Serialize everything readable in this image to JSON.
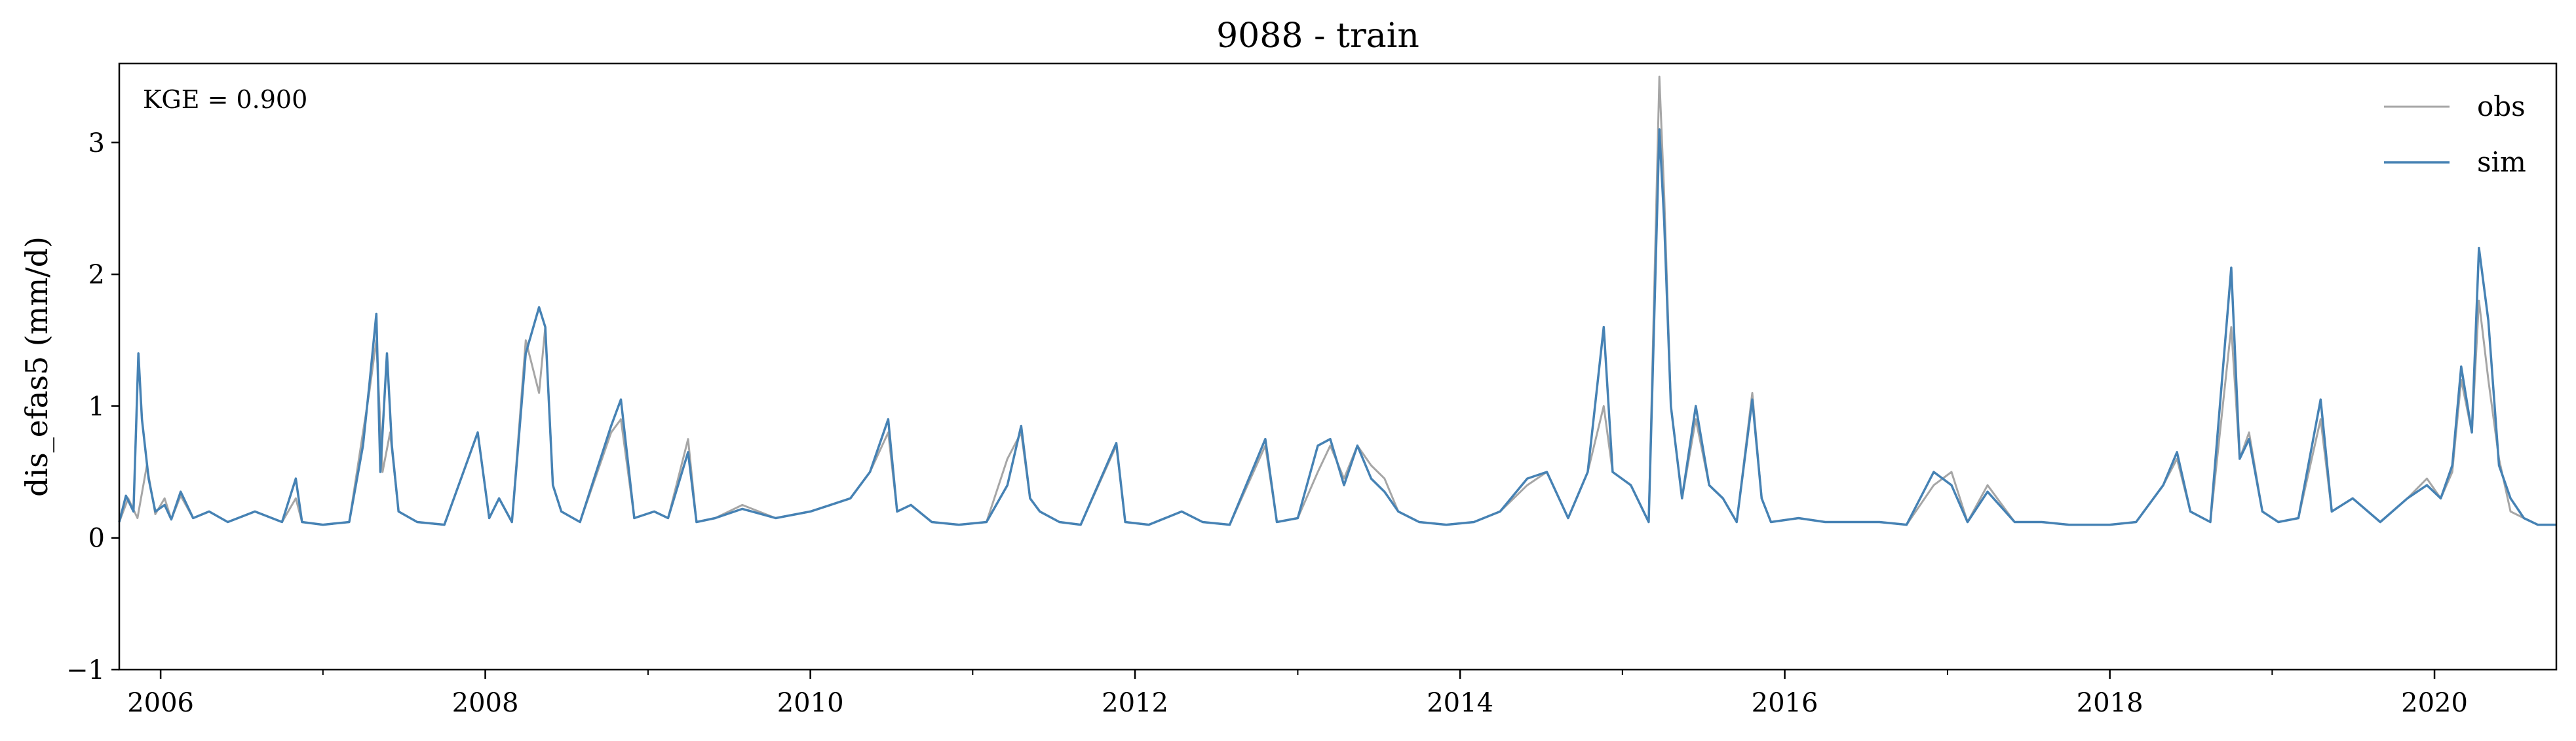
{
  "chart_data": {
    "type": "line",
    "title": "9088 - train",
    "xlabel": "",
    "ylabel": "dis_efas5 (mm/d)",
    "annotation": "KGE = 0.900",
    "xlim": [
      "2005-09-30",
      "2020-10-01"
    ],
    "ylim": [
      -1,
      3.6
    ],
    "grid": false,
    "legend": "top-right",
    "x_major_ticks": [
      "2006",
      "2008",
      "2010",
      "2012",
      "2014",
      "2016",
      "2018",
      "2020"
    ],
    "x_minor_ticks": [
      "2007",
      "2009",
      "2011",
      "2013",
      "2015",
      "2017",
      "2019"
    ],
    "y_ticks": [
      -1,
      0,
      1,
      2,
      3
    ],
    "y_tick_labels": [
      "−1",
      "0",
      "1",
      "2",
      "3"
    ],
    "series": [
      {
        "name": "obs",
        "color": "#a6a6a6",
        "x": [
          "2005-09-30",
          "2005-10-20",
          "2005-11-10",
          "2005-12-01",
          "2005-12-20",
          "2006-01-10",
          "2006-01-25",
          "2006-02-15",
          "2006-03-15",
          "2006-04-20",
          "2006-06-01",
          "2006-08-01",
          "2006-10-01",
          "2006-11-01",
          "2006-11-15",
          "2007-01-01",
          "2007-03-01",
          "2007-04-01",
          "2007-04-15",
          "2007-05-01",
          "2007-05-15",
          "2007-06-01",
          "2007-06-20",
          "2007-08-01",
          "2007-10-01",
          "2007-12-15",
          "2008-01-10",
          "2008-02-01",
          "2008-03-01",
          "2008-04-01",
          "2008-05-01",
          "2008-05-15",
          "2008-06-01",
          "2008-06-20",
          "2008-08-01",
          "2008-10-10",
          "2008-11-01",
          "2008-12-01",
          "2009-01-15",
          "2009-02-15",
          "2009-04-01",
          "2009-04-20",
          "2009-06-01",
          "2009-08-01",
          "2009-10-15",
          "2010-01-01",
          "2010-02-15",
          "2010-04-01",
          "2010-05-15",
          "2010-06-25",
          "2010-07-15",
          "2010-08-15",
          "2010-10-01",
          "2010-12-01",
          "2011-02-01",
          "2011-03-20",
          "2011-04-20",
          "2011-05-10",
          "2011-06-01",
          "2011-07-15",
          "2011-09-01",
          "2011-11-20",
          "2011-12-10",
          "2012-02-01",
          "2012-04-15",
          "2012-06-01",
          "2012-08-01",
          "2012-10-20",
          "2012-11-15",
          "2013-01-01",
          "2013-02-15",
          "2013-03-15",
          "2013-04-15",
          "2013-05-15",
          "2013-06-15",
          "2013-07-15",
          "2013-08-15",
          "2013-10-01",
          "2013-12-01",
          "2014-02-01",
          "2014-04-01",
          "2014-06-01",
          "2014-07-15",
          "2014-09-01",
          "2014-10-15",
          "2014-11-20",
          "2014-12-10",
          "2015-01-20",
          "2015-03-01",
          "2015-03-25",
          "2015-04-05",
          "2015-04-20",
          "2015-05-15",
          "2015-06-15",
          "2015-07-15",
          "2015-08-15",
          "2015-09-15",
          "2015-10-20",
          "2015-11-10",
          "2015-12-01",
          "2016-02-01",
          "2016-04-01",
          "2016-06-01",
          "2016-08-01",
          "2016-10-01",
          "2016-12-01",
          "2017-01-10",
          "2017-02-15",
          "2017-04-01",
          "2017-06-01",
          "2017-08-01",
          "2017-10-01",
          "2018-01-01",
          "2018-03-01",
          "2018-05-01",
          "2018-06-01",
          "2018-07-01",
          "2018-08-15",
          "2018-10-01",
          "2018-10-20",
          "2018-11-10",
          "2018-12-10",
          "2019-01-15",
          "2019-03-01",
          "2019-04-20",
          "2019-05-15",
          "2019-07-01",
          "2019-09-01",
          "2019-11-01",
          "2019-12-15",
          "2020-01-15",
          "2020-02-10",
          "2020-03-01",
          "2020-03-25",
          "2020-04-10",
          "2020-05-01",
          "2020-05-25",
          "2020-06-20",
          "2020-07-20",
          "2020-08-20",
          "2020-10-01"
        ],
        "values": [
          0.12,
          0.3,
          0.15,
          0.55,
          0.18,
          0.3,
          0.14,
          0.32,
          0.15,
          0.2,
          0.12,
          0.2,
          0.12,
          0.3,
          0.12,
          0.1,
          0.12,
          0.8,
          1.1,
          1.5,
          0.5,
          0.8,
          0.2,
          0.12,
          0.1,
          0.8,
          0.15,
          0.3,
          0.12,
          1.5,
          1.1,
          1.6,
          0.4,
          0.2,
          0.12,
          0.8,
          0.9,
          0.15,
          0.2,
          0.15,
          0.75,
          0.12,
          0.15,
          0.25,
          0.15,
          0.2,
          0.25,
          0.3,
          0.5,
          0.8,
          0.2,
          0.25,
          0.12,
          0.1,
          0.12,
          0.6,
          0.8,
          0.3,
          0.2,
          0.12,
          0.1,
          0.7,
          0.12,
          0.1,
          0.2,
          0.12,
          0.1,
          0.7,
          0.12,
          0.15,
          0.5,
          0.7,
          0.45,
          0.7,
          0.55,
          0.45,
          0.2,
          0.12,
          0.1,
          0.12,
          0.2,
          0.4,
          0.5,
          0.15,
          0.5,
          1.0,
          0.5,
          0.4,
          0.12,
          3.5,
          2.6,
          1.0,
          0.3,
          0.9,
          0.4,
          0.3,
          0.12,
          1.1,
          0.3,
          0.12,
          0.15,
          0.12,
          0.12,
          0.12,
          0.1,
          0.4,
          0.5,
          0.12,
          0.4,
          0.12,
          0.12,
          0.1,
          0.1,
          0.12,
          0.4,
          0.6,
          0.2,
          0.12,
          1.6,
          0.6,
          0.8,
          0.2,
          0.12,
          0.15,
          0.9,
          0.2,
          0.3,
          0.12,
          0.3,
          0.45,
          0.3,
          0.5,
          1.2,
          0.8,
          1.8,
          1.2,
          0.6,
          0.2,
          0.15,
          0.1,
          0.1
        ]
      },
      {
        "name": "sim",
        "color": "#4682b4",
        "x": [
          "2005-09-30",
          "2005-10-15",
          "2005-11-01",
          "2005-11-12",
          "2005-11-20",
          "2005-12-05",
          "2005-12-20",
          "2006-01-10",
          "2006-01-25",
          "2006-02-15",
          "2006-03-15",
          "2006-04-20",
          "2006-06-01",
          "2006-08-01",
          "2006-10-01",
          "2006-11-01",
          "2006-11-15",
          "2007-01-01",
          "2007-03-01",
          "2007-04-01",
          "2007-04-15",
          "2007-05-01",
          "2007-05-10",
          "2007-05-25",
          "2007-06-05",
          "2007-06-20",
          "2007-08-01",
          "2007-10-01",
          "2007-12-15",
          "2008-01-10",
          "2008-02-01",
          "2008-03-01",
          "2008-04-01",
          "2008-05-01",
          "2008-05-15",
          "2008-06-01",
          "2008-06-20",
          "2008-08-01",
          "2008-10-10",
          "2008-11-01",
          "2008-12-01",
          "2009-01-15",
          "2009-02-15",
          "2009-04-01",
          "2009-04-20",
          "2009-06-01",
          "2009-08-01",
          "2009-10-15",
          "2010-01-01",
          "2010-02-15",
          "2010-04-01",
          "2010-05-15",
          "2010-06-25",
          "2010-07-15",
          "2010-08-15",
          "2010-10-01",
          "2010-12-01",
          "2011-02-01",
          "2011-03-20",
          "2011-04-20",
          "2011-05-10",
          "2011-06-01",
          "2011-07-15",
          "2011-09-01",
          "2011-11-20",
          "2011-12-10",
          "2012-02-01",
          "2012-04-15",
          "2012-06-01",
          "2012-08-01",
          "2012-10-20",
          "2012-11-15",
          "2013-01-01",
          "2013-02-15",
          "2013-03-15",
          "2013-04-15",
          "2013-05-15",
          "2013-06-15",
          "2013-07-15",
          "2013-08-15",
          "2013-10-01",
          "2013-12-01",
          "2014-02-01",
          "2014-04-01",
          "2014-06-01",
          "2014-07-15",
          "2014-09-01",
          "2014-10-15",
          "2014-11-20",
          "2014-12-10",
          "2015-01-20",
          "2015-03-01",
          "2015-03-25",
          "2015-04-05",
          "2015-04-20",
          "2015-05-15",
          "2015-06-15",
          "2015-07-15",
          "2015-08-15",
          "2015-09-15",
          "2015-10-20",
          "2015-11-10",
          "2015-12-01",
          "2016-02-01",
          "2016-04-01",
          "2016-06-01",
          "2016-08-01",
          "2016-10-01",
          "2016-12-01",
          "2017-01-10",
          "2017-02-15",
          "2017-04-01",
          "2017-06-01",
          "2017-08-01",
          "2017-10-01",
          "2018-01-01",
          "2018-03-01",
          "2018-05-01",
          "2018-06-01",
          "2018-07-01",
          "2018-08-15",
          "2018-10-01",
          "2018-10-20",
          "2018-11-10",
          "2018-12-10",
          "2019-01-15",
          "2019-03-01",
          "2019-04-20",
          "2019-05-15",
          "2019-07-01",
          "2019-09-01",
          "2019-11-01",
          "2019-12-15",
          "2020-01-15",
          "2020-02-10",
          "2020-03-01",
          "2020-03-25",
          "2020-04-10",
          "2020-05-01",
          "2020-05-25",
          "2020-06-20",
          "2020-07-20",
          "2020-08-20",
          "2020-10-01"
        ],
        "values": [
          0.12,
          0.32,
          0.2,
          1.4,
          0.9,
          0.45,
          0.2,
          0.25,
          0.14,
          0.35,
          0.15,
          0.2,
          0.12,
          0.2,
          0.12,
          0.45,
          0.12,
          0.1,
          0.12,
          0.7,
          1.15,
          1.7,
          0.5,
          1.4,
          0.7,
          0.2,
          0.12,
          0.1,
          0.8,
          0.15,
          0.3,
          0.12,
          1.4,
          1.75,
          1.6,
          0.4,
          0.2,
          0.12,
          0.85,
          1.05,
          0.15,
          0.2,
          0.15,
          0.65,
          0.12,
          0.15,
          0.22,
          0.15,
          0.2,
          0.25,
          0.3,
          0.5,
          0.9,
          0.2,
          0.25,
          0.12,
          0.1,
          0.12,
          0.4,
          0.85,
          0.3,
          0.2,
          0.12,
          0.1,
          0.72,
          0.12,
          0.1,
          0.2,
          0.12,
          0.1,
          0.75,
          0.12,
          0.15,
          0.7,
          0.75,
          0.4,
          0.7,
          0.45,
          0.35,
          0.2,
          0.12,
          0.1,
          0.12,
          0.2,
          0.45,
          0.5,
          0.15,
          0.5,
          1.6,
          0.5,
          0.4,
          0.12,
          3.1,
          2.4,
          1.0,
          0.3,
          1.0,
          0.4,
          0.3,
          0.12,
          1.05,
          0.3,
          0.12,
          0.15,
          0.12,
          0.12,
          0.12,
          0.1,
          0.5,
          0.4,
          0.12,
          0.35,
          0.12,
          0.12,
          0.1,
          0.1,
          0.12,
          0.4,
          0.65,
          0.2,
          0.12,
          2.05,
          0.6,
          0.75,
          0.2,
          0.12,
          0.15,
          1.05,
          0.2,
          0.3,
          0.12,
          0.3,
          0.4,
          0.3,
          0.55,
          1.3,
          0.8,
          2.2,
          1.65,
          0.55,
          0.3,
          0.15,
          0.1,
          0.1
        ]
      }
    ]
  }
}
